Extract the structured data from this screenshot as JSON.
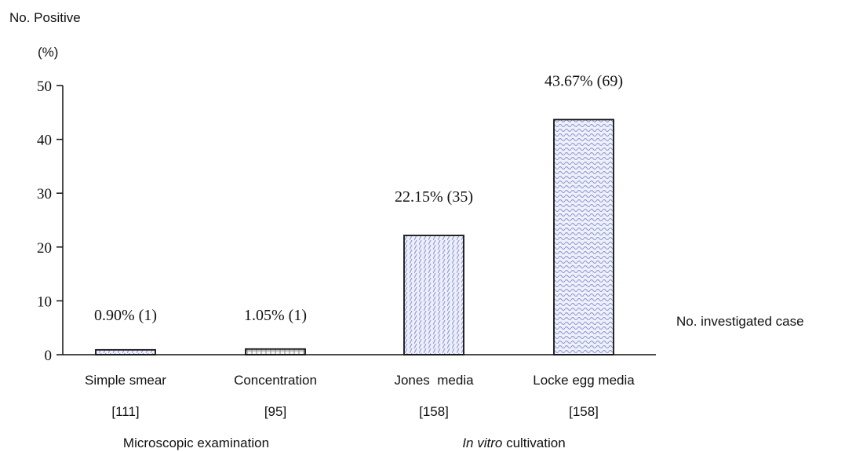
{
  "chart_data": {
    "type": "bar",
    "ylabel_line1": "No. Positive",
    "ylabel_line2": "(%)",
    "ylim": [
      0,
      50
    ],
    "yticks": [
      0,
      10,
      20,
      30,
      40,
      50
    ],
    "categories": [
      "Simple smear",
      "Concentration",
      "Jones  media",
      "Locke egg media"
    ],
    "values": [
      0.9,
      1.05,
      22.15,
      43.67
    ],
    "data_labels": [
      "0.90% (1)",
      "1.05% (1)",
      "22.15% (35)",
      "43.67% (69)"
    ],
    "case_counts": [
      "[111]",
      "[95]",
      "[158]",
      "[158]"
    ],
    "right_label": "No. investigated case",
    "groups": [
      {
        "label_plain": "Microscopic examination",
        "label_italic": ""
      },
      {
        "label_italic": "In vitro",
        "label_plain": " cultivation"
      }
    ],
    "bar_colors": {
      "fill": "#e6e8f7",
      "hatch": "#7d86c8",
      "stroke": "#111111"
    },
    "grid": false
  }
}
